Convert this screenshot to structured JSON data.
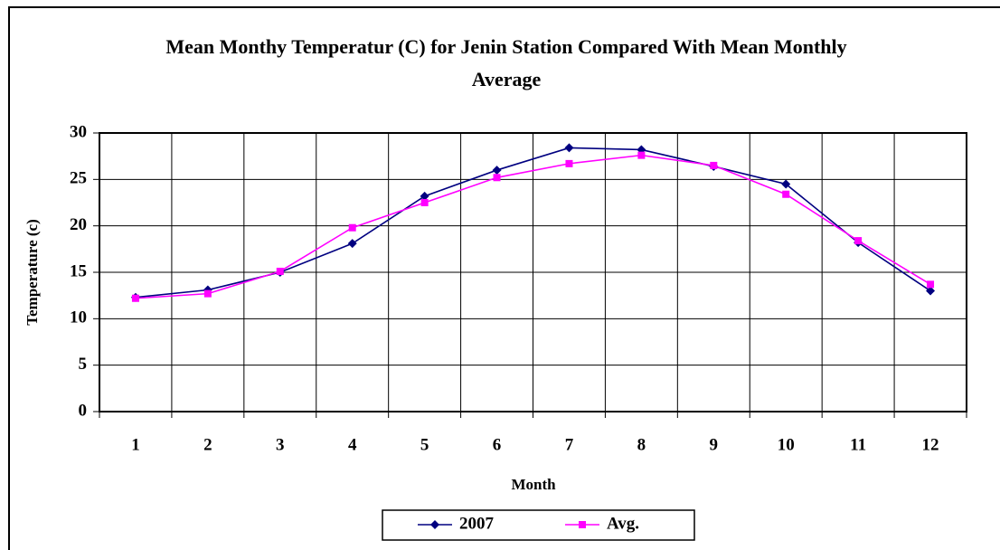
{
  "chart_data": {
    "type": "line",
    "title": "Mean Monthy Temperatur (C) for Jenin Station Compared With Mean Monthly Average",
    "x_label": "Month",
    "y_label": "Temperature (c)",
    "categories": [
      "1",
      "2",
      "3",
      "4",
      "5",
      "6",
      "7",
      "8",
      "9",
      "10",
      "11",
      "12"
    ],
    "series": [
      {
        "name": "2007",
        "color": "#000080",
        "marker": "diamond",
        "values": [
          12.3,
          13.1,
          15.0,
          18.1,
          23.2,
          26.0,
          28.4,
          28.2,
          26.4,
          24.5,
          18.2,
          13.0
        ]
      },
      {
        "name": "Avg.",
        "color": "#ff00ff",
        "marker": "square",
        "values": [
          12.2,
          12.7,
          15.1,
          19.8,
          22.5,
          25.2,
          26.7,
          27.6,
          26.5,
          23.4,
          18.4,
          13.7
        ]
      }
    ],
    "ylim": [
      0,
      30
    ],
    "yticks": [
      0,
      5,
      10,
      15,
      20,
      25,
      30
    ],
    "grid": true,
    "legend": "bottom"
  }
}
